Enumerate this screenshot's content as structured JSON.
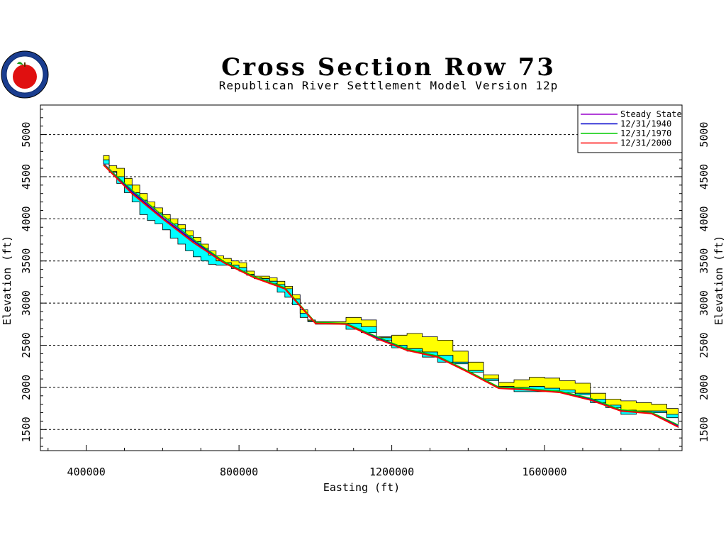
{
  "chart_data": {
    "type": "area",
    "title": "Cross Section Row 73",
    "subtitle": "Republican River Settlement Model Version 12p",
    "xlabel": "Easting (ft)",
    "ylabel": "Elevation (ft)",
    "xlim": [
      280000,
      1960000
    ],
    "ylim": [
      1250000,
      5000
    ],
    "x_ticks": [
      400000,
      800000,
      1200000,
      1600000
    ],
    "x_tick_labels": [
      "400000",
      "800000",
      "1200000",
      "1600000"
    ],
    "y_ticks": [
      1500,
      2000,
      2500,
      3000,
      3500,
      4000,
      4500,
      5000
    ],
    "y_tick_labels": [
      "1500",
      "2000",
      "2500",
      "3000",
      "3500",
      "4000",
      "4500",
      "5000"
    ],
    "grid": "dashed horizontal",
    "legend_position": "top-right",
    "colors": {
      "upper_layer": "#ffff00",
      "lower_layer": "#00ffff",
      "steady_state": "#9900cc",
      "d1940": "#0000cc",
      "d1970": "#00cc00",
      "d2000": "#ff0000"
    },
    "layers": {
      "x": [
        445000,
        460000,
        480000,
        500000,
        520000,
        540000,
        560000,
        580000,
        600000,
        620000,
        640000,
        660000,
        680000,
        700000,
        720000,
        740000,
        760000,
        780000,
        800000,
        820000,
        840000,
        860000,
        880000,
        900000,
        920000,
        940000,
        960000,
        980000,
        1000000,
        1040000,
        1080000,
        1120000,
        1160000,
        1200000,
        1240000,
        1280000,
        1320000,
        1360000,
        1400000,
        1440000,
        1480000,
        1520000,
        1560000,
        1600000,
        1640000,
        1680000,
        1720000,
        1760000,
        1800000,
        1840000,
        1880000,
        1920000,
        1950000
      ],
      "top": [
        4750,
        4630,
        4600,
        4480,
        4400,
        4300,
        4200,
        4130,
        4050,
        4000,
        3930,
        3860,
        3780,
        3700,
        3620,
        3560,
        3530,
        3500,
        3480,
        3380,
        3320,
        3320,
        3300,
        3260,
        3200,
        3100,
        2920,
        2800,
        2780,
        2780,
        2830,
        2800,
        2600,
        2620,
        2640,
        2600,
        2560,
        2430,
        2300,
        2150,
        2060,
        2090,
        2120,
        2110,
        2080,
        2050,
        1930,
        1860,
        1840,
        1820,
        1800,
        1750,
        1640
      ],
      "mid": [
        4650,
        4560,
        4500,
        4400,
        4310,
        4220,
        4140,
        4070,
        4000,
        3940,
        3880,
        3800,
        3730,
        3650,
        3570,
        3500,
        3480,
        3450,
        3420,
        3340,
        3300,
        3290,
        3260,
        3220,
        3170,
        3050,
        2880,
        2790,
        2760,
        2760,
        2760,
        2720,
        2590,
        2500,
        2460,
        2420,
        2380,
        2300,
        2200,
        2100,
        2010,
        2000,
        2010,
        1990,
        1970,
        1930,
        1860,
        1790,
        1730,
        1720,
        1720,
        1680,
        1560
      ],
      "bottom": [
        4700,
        4550,
        4420,
        4310,
        4200,
        4050,
        3980,
        3940,
        3870,
        3770,
        3700,
        3620,
        3550,
        3500,
        3460,
        3450,
        3450,
        3410,
        3380,
        3330,
        3290,
        3270,
        3230,
        3130,
        3070,
        2980,
        2830,
        2780,
        2750,
        2750,
        2690,
        2650,
        2560,
        2470,
        2430,
        2360,
        2300,
        2280,
        2180,
        2080,
        2000,
        1950,
        1950,
        1960,
        1940,
        1910,
        1820,
        1760,
        1680,
        1700,
        1700,
        1640,
        1520
      ]
    },
    "series": [
      {
        "name": "Steady State",
        "color": "#9900cc",
        "x": [
          445000,
          520000,
          600000,
          680000,
          760000,
          840000,
          920000,
          1000000,
          1080000,
          1160000,
          1240000,
          1320000,
          1400000,
          1480000,
          1560000,
          1640000,
          1720000,
          1800000,
          1880000,
          1950000
        ],
        "y": [
          4660,
          4330,
          4020,
          3750,
          3490,
          3310,
          3180,
          2770,
          2760,
          2600,
          2450,
          2370,
          2190,
          2000,
          1980,
          1950,
          1870,
          1730,
          1700,
          1550
        ]
      },
      {
        "name": "12/31/1940",
        "color": "#0000cc",
        "x": [
          445000,
          520000,
          600000,
          680000,
          760000,
          840000,
          920000,
          1000000,
          1080000,
          1160000,
          1240000,
          1320000,
          1400000,
          1480000,
          1560000,
          1640000,
          1720000,
          1800000,
          1880000,
          1950000
        ],
        "y": [
          4655,
          4320,
          4010,
          3740,
          3485,
          3305,
          3175,
          2765,
          2755,
          2590,
          2445,
          2365,
          2185,
          1995,
          1975,
          1945,
          1860,
          1725,
          1695,
          1540
        ]
      },
      {
        "name": "12/31/1970",
        "color": "#00cc00",
        "x": [
          445000,
          520000,
          600000,
          680000,
          760000,
          840000,
          920000,
          1000000,
          1080000,
          1160000,
          1240000,
          1320000,
          1400000,
          1480000,
          1560000,
          1640000,
          1720000,
          1800000,
          1880000,
          1950000
        ],
        "y": [
          4650,
          4340,
          4040,
          3760,
          3495,
          3315,
          3185,
          2772,
          2762,
          2605,
          2455,
          2375,
          2195,
          2005,
          1985,
          1955,
          1872,
          1735,
          1705,
          1555
        ]
      },
      {
        "name": "12/31/2000",
        "color": "#ff0000",
        "x": [
          445000,
          520000,
          600000,
          680000,
          760000,
          840000,
          920000,
          1000000,
          1080000,
          1160000,
          1240000,
          1320000,
          1400000,
          1480000,
          1560000,
          1640000,
          1720000,
          1800000,
          1880000,
          1950000
        ],
        "y": [
          4640,
          4300,
          4000,
          3720,
          3480,
          3300,
          3170,
          2760,
          2750,
          2580,
          2440,
          2360,
          2180,
          1990,
          1970,
          1940,
          1850,
          1720,
          1690,
          1530
        ]
      }
    ]
  }
}
